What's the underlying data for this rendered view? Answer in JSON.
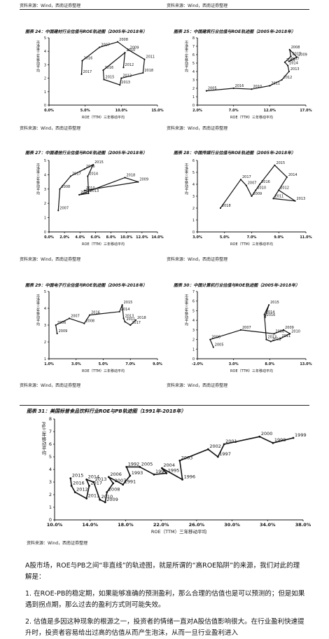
{
  "top_sources": {
    "left": "资料来源：Wind，西南证券整理",
    "right": "资料来源：Wind，西南证券整理"
  },
  "charts": [
    {
      "id": "c24",
      "title": "图表 24：中国建材行业估值与ROE轨迹图（2005年-2018年）",
      "xlabel": "ROE（TTM）三年移动平均",
      "ylabel": "市净率三年移动平均",
      "source": "资料来源：Wind，西南证券整理",
      "chart_data": {
        "type": "line",
        "xticks": [
          "0.0%",
          "5.0%",
          "10.0%",
          "15.0%"
        ],
        "xlim": [
          0,
          15
        ],
        "ylim": [
          0,
          5
        ],
        "points": [
          {
            "label": "2017",
            "x": 4.5,
            "y": 2.3
          },
          {
            "label": "2016",
            "x": 4.6,
            "y": 3.3
          },
          {
            "label": "2007",
            "x": 7.0,
            "y": 4.3
          },
          {
            "label": "2008",
            "x": 9.5,
            "y": 4.7
          },
          {
            "label": "2009",
            "x": 11.0,
            "y": 4.1
          },
          {
            "label": "2011",
            "x": 13.2,
            "y": 3.4
          },
          {
            "label": "2018",
            "x": 13.0,
            "y": 2.4
          },
          {
            "label": "2012",
            "x": 10.0,
            "y": 2.0
          },
          {
            "label": "2013",
            "x": 9.8,
            "y": 1.5
          },
          {
            "label": "2015",
            "x": 7.6,
            "y": 1.9
          },
          {
            "label": "2016",
            "x": 7.5,
            "y": 2.6
          },
          {
            "label": "2010",
            "x": 10.5,
            "y": 3.9
          },
          {
            "label": "2012",
            "x": 10.3,
            "y": 2.8
          }
        ]
      }
    },
    {
      "id": "c25",
      "title": "图表 25：中国建筑行业估值与ROE轨迹图（2005年-2018年）",
      "xlabel": "ROE（TTM）三年移动平均",
      "ylabel": "市净率三年移动平均",
      "source": "资料来源：Wind，西南证券整理",
      "chart_data": {
        "type": "line",
        "xticks": [
          "2.0%",
          "7.0%",
          "12.0%",
          "17.0%"
        ],
        "xlim": [
          2,
          20
        ],
        "ylim": [
          0,
          8
        ],
        "points": [
          {
            "label": "2005",
            "x": 3.5,
            "y": 1.7
          },
          {
            "label": "2016",
            "x": 8.0,
            "y": 2.0
          },
          {
            "label": "2010",
            "x": 11.0,
            "y": 1.9
          },
          {
            "label": "2011",
            "x": 14.0,
            "y": 2.3
          },
          {
            "label": "2012",
            "x": 16.0,
            "y": 3.0
          },
          {
            "label": "2013",
            "x": 17.2,
            "y": 4.0
          },
          {
            "label": "2014",
            "x": 17.0,
            "y": 4.7
          },
          {
            "label": "2015",
            "x": 16.5,
            "y": 5.1
          },
          {
            "label": "2017",
            "x": 17.5,
            "y": 5.8
          },
          {
            "label": "2008",
            "x": 17.3,
            "y": 6.6
          },
          {
            "label": "2009",
            "x": 18.5,
            "y": 5.7
          },
          {
            "label": "2007",
            "x": 17.2,
            "y": 5.2
          }
        ]
      }
    },
    {
      "id": "c27",
      "title": "图表 27：中国通信行业估值与ROE轨迹图（2005年-2018年）",
      "xlabel": "ROE（TTM）三年移动平均",
      "ylabel": "市净率三年移动平均",
      "source": "资料来源：Wind，西南证券整理",
      "chart_data": {
        "type": "line",
        "xticks": [
          "0.0%",
          "2.0%",
          "4.0%",
          "6.0%",
          "8.0%",
          "10.0%",
          "12.0%",
          "14.0%"
        ],
        "xlim": [
          0,
          14
        ],
        "ylim": [
          0,
          5
        ],
        "points": [
          {
            "label": "2007",
            "x": 1.2,
            "y": 1.5
          },
          {
            "label": "2008",
            "x": 1.4,
            "y": 3.0
          },
          {
            "label": "2017",
            "x": 2.8,
            "y": 3.9
          },
          {
            "label": "2016",
            "x": 4.6,
            "y": 4.4
          },
          {
            "label": "2015",
            "x": 5.7,
            "y": 4.7
          },
          {
            "label": "2014",
            "x": 5.0,
            "y": 3.9
          },
          {
            "label": "2013",
            "x": 5.1,
            "y": 2.7
          },
          {
            "label": "2012",
            "x": 3.9,
            "y": 2.6
          },
          {
            "label": "2018",
            "x": 9.8,
            "y": 3.8
          },
          {
            "label": "2009",
            "x": 11.5,
            "y": 3.5
          },
          {
            "label": "2010",
            "x": 4.6,
            "y": 2.9
          }
        ]
      }
    },
    {
      "id": "c28",
      "title": "图表 28：中国传媒行业估值与ROE轨迹图（2005年-2018年）",
      "xlabel": "ROE（TTM）三年移动平均",
      "ylabel": "市净率三年移动平均",
      "source": "资料来源：Wind，西南证券整理",
      "chart_data": {
        "type": "line",
        "xticks": [
          "3.0%",
          "5.0%",
          "7.0%",
          "9.0%",
          "11.0%"
        ],
        "xlim": [
          3,
          11
        ],
        "ylim": [
          0,
          6
        ],
        "points": [
          {
            "label": "2018",
            "x": 4.7,
            "y": 2.0
          },
          {
            "label": "2017",
            "x": 6.2,
            "y": 4.4
          },
          {
            "label": "2007",
            "x": 6.6,
            "y": 3.9
          },
          {
            "label": "2009",
            "x": 7.0,
            "y": 3.0
          },
          {
            "label": "2010",
            "x": 7.3,
            "y": 3.5
          },
          {
            "label": "2016",
            "x": 7.6,
            "y": 4.0
          },
          {
            "label": "2015",
            "x": 8.7,
            "y": 5.6
          },
          {
            "label": "2014",
            "x": 9.6,
            "y": 4.6
          },
          {
            "label": "2011",
            "x": 8.6,
            "y": 2.8
          },
          {
            "label": "2013",
            "x": 10.2,
            "y": 2.6
          },
          {
            "label": "2012",
            "x": 9.0,
            "y": 3.5
          }
        ]
      }
    },
    {
      "id": "c29",
      "title": "图表 29：中国电子行业估值与ROE轨迹图（2005年-2018年）",
      "xlabel": "ROE（TTM）三年移动平均",
      "ylabel": "市净率三年移动平均",
      "source": "资料来源：Wind，西南证券整理",
      "chart_data": {
        "type": "line",
        "xticks": [
          "1.0%",
          "3.0%",
          "5.0%",
          "7.0%",
          "9.0%"
        ],
        "xlim": [
          1,
          9
        ],
        "ylim": [
          1,
          5
        ],
        "points": [
          {
            "label": "2009",
            "x": 1.6,
            "y": 2.5
          },
          {
            "label": "2006",
            "x": 1.5,
            "y": 3.0
          },
          {
            "label": "2007",
            "x": 2.5,
            "y": 3.4
          },
          {
            "label": "2008",
            "x": 3.6,
            "y": 3.1
          },
          {
            "label": "2016",
            "x": 4.0,
            "y": 3.6
          },
          {
            "label": "2014",
            "x": 6.2,
            "y": 3.8
          },
          {
            "label": "2015",
            "x": 6.4,
            "y": 4.2
          },
          {
            "label": "2013",
            "x": 6.5,
            "y": 3.4
          },
          {
            "label": "2011",
            "x": 6.6,
            "y": 3.2
          },
          {
            "label": "2017",
            "x": 7.0,
            "y": 3.0
          },
          {
            "label": "2018",
            "x": 7.4,
            "y": 3.3
          }
        ]
      }
    },
    {
      "id": "c30",
      "title": "图表 30：中国计算机行业估值与ROE轨迹图（2005年-2018年）",
      "xlabel": "ROE（TTM）三年移动平均",
      "ylabel": "市净率三年移动平均",
      "source": "资料来源：Wind，西南证券整理",
      "chart_data": {
        "type": "line",
        "xticks": [
          "-2.0%",
          "3.0%",
          "8.0%",
          "13.0%"
        ],
        "xlim": [
          -2,
          15
        ],
        "ylim": [
          0,
          7
        ],
        "points": [
          {
            "label": "2005",
            "x": 0.5,
            "y": 1.2
          },
          {
            "label": "2006",
            "x": 0.0,
            "y": 2.0
          },
          {
            "label": "2007",
            "x": 4.8,
            "y": 3.0
          },
          {
            "label": "2008",
            "x": 10.0,
            "y": 2.6
          },
          {
            "label": "2009",
            "x": 11.5,
            "y": 3.0
          },
          {
            "label": "2010",
            "x": 12.5,
            "y": 2.6
          },
          {
            "label": "2011",
            "x": 11.0,
            "y": 2.1
          },
          {
            "label": "2012",
            "x": 9.5,
            "y": 1.8
          },
          {
            "label": "2013",
            "x": 8.8,
            "y": 2.0
          },
          {
            "label": "2014",
            "x": 8.5,
            "y": 4.6
          },
          {
            "label": "2015",
            "x": 9.2,
            "y": 5.6
          },
          {
            "label": "2016",
            "x": 8.6,
            "y": 4.3
          }
        ]
      }
    },
    {
      "id": "c31",
      "title": "图表 31：美国标普食品饮料行业ROE与PB轨迹图（1991年-2018年）",
      "xlabel": "ROE（TTM）三年移动平均",
      "ylabel": "PB三年移动平均",
      "source": "资料来源：Wind，西南证券整理",
      "chart_data": {
        "type": "line",
        "xticks": [
          "10.0%",
          "14.0%",
          "18.0%",
          "22.0%",
          "26.0%",
          "30.0%",
          "34.0%",
          "38.0%"
        ],
        "xlim": [
          10,
          38
        ],
        "ylim": [
          0,
          8
        ],
        "yticks": [
          "0",
          "1",
          "2",
          "3",
          "4",
          "5",
          "6",
          "7",
          "8"
        ],
        "points": [
          {
            "label": "2015",
            "x": 11.8,
            "y": 3.3
          },
          {
            "label": "2016",
            "x": 11.9,
            "y": 2.7
          },
          {
            "label": "2012",
            "x": 12.3,
            "y": 2.2
          },
          {
            "label": "2011",
            "x": 13.6,
            "y": 1.7
          },
          {
            "label": "2017",
            "x": 13.9,
            "y": 2.7
          },
          {
            "label": "2014",
            "x": 13.6,
            "y": 3.2
          },
          {
            "label": "2013",
            "x": 14.4,
            "y": 3.0
          },
          {
            "label": "2010",
            "x": 15.1,
            "y": 1.6
          },
          {
            "label": "2009",
            "x": 15.7,
            "y": 1.4
          },
          {
            "label": "2008",
            "x": 15.9,
            "y": 2.2
          },
          {
            "label": "2007",
            "x": 16.6,
            "y": 2.9
          },
          {
            "label": "2006",
            "x": 16.1,
            "y": 3.4
          },
          {
            "label": "1991",
            "x": 17.7,
            "y": 2.8
          },
          {
            "label": "1993",
            "x": 18.5,
            "y": 3.5
          },
          {
            "label": "1992",
            "x": 18.1,
            "y": 4.2
          },
          {
            "label": "2005",
            "x": 19.6,
            "y": 4.2
          },
          {
            "label": "1994",
            "x": 21.2,
            "y": 3.6
          },
          {
            "label": "1995",
            "x": 22.6,
            "y": 3.7
          },
          {
            "label": "2004",
            "x": 22.1,
            "y": 4.1
          },
          {
            "label": "1996",
            "x": 24.4,
            "y": 3.2
          },
          {
            "label": "2003",
            "x": 24.1,
            "y": 4.7
          },
          {
            "label": "2002",
            "x": 27.3,
            "y": 5.6
          },
          {
            "label": "1997",
            "x": 28.4,
            "y": 5.0
          },
          {
            "label": "2001",
            "x": 29.1,
            "y": 6.0
          },
          {
            "label": "2000",
            "x": 33.1,
            "y": 6.6
          },
          {
            "label": "1998",
            "x": 34.6,
            "y": 6.1
          },
          {
            "label": "1999",
            "x": 36.9,
            "y": 6.5
          }
        ]
      }
    }
  ],
  "text": {
    "intro": "A股市场，ROE与PB之间“非直线”的轨迹图，就是所谓的“高ROE陷阱”的来源，我们对此的理解是：",
    "point1": "1. 在ROE-PB的稳定期，如果能够准确的预测盈利，那么合理的估值也是可以预测的；但是如果遇到拐点期，那么过去的盈利方式则可能失效。",
    "point2": "2. 估值是多因这种现象的根源之一，投资者的情绪一直对A股估值影响很大。在行业盈利快速提升时，投资者容易给出过高的估值从而产生泡沫，从而一旦行业盈利进入"
  },
  "colors": {
    "line": "#111111",
    "axis": "#111111",
    "text": "#111111"
  }
}
